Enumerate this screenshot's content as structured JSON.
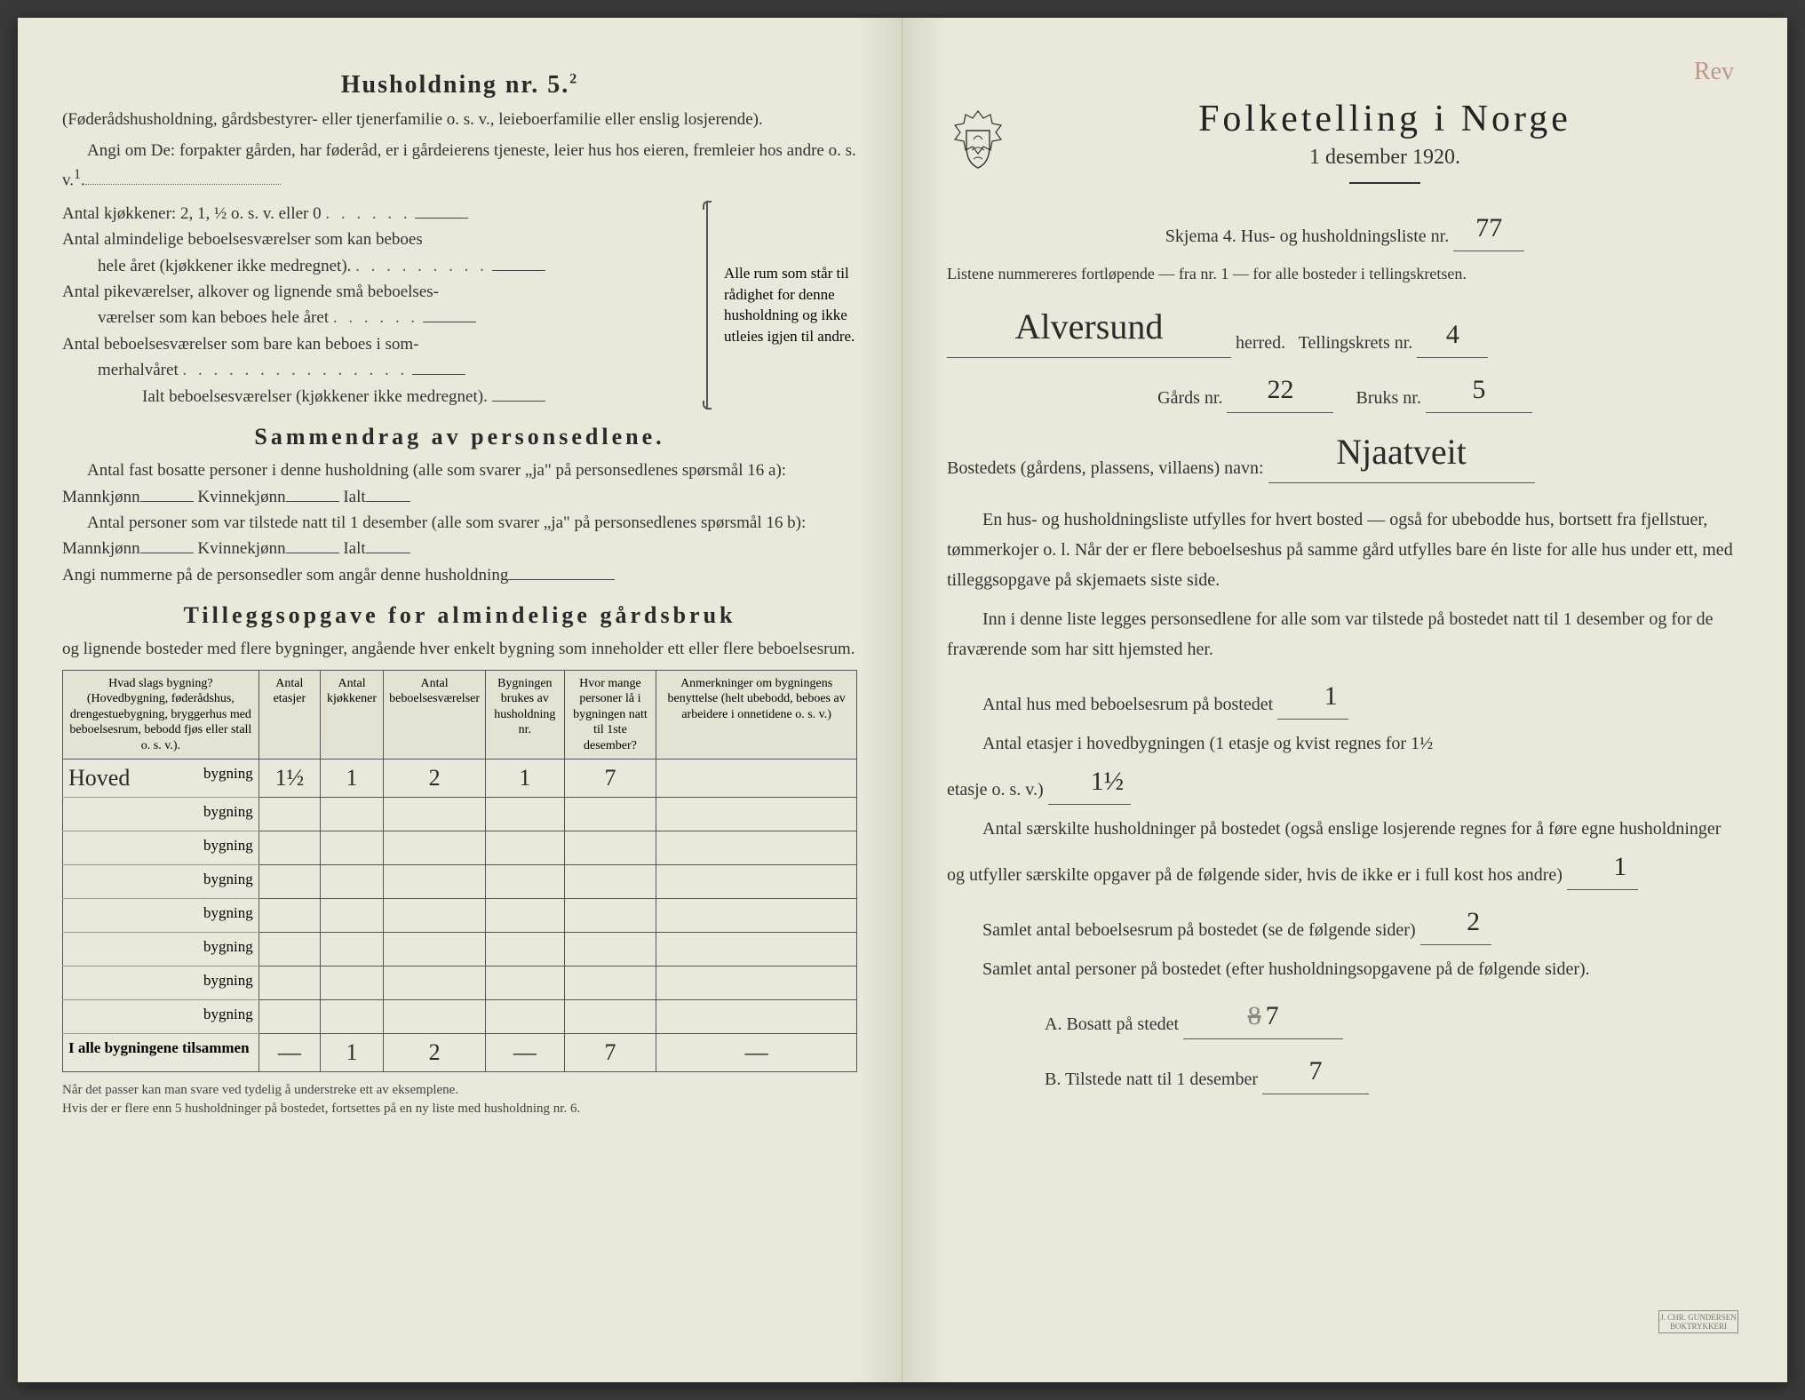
{
  "left": {
    "title": "Husholdning nr. 5.",
    "title_sup": "2",
    "intro1": "(Føderådshusholdning, gårdsbestyrer- eller tjenerfamilie o. s. v., leieboerfamilie eller enslig losjerende).",
    "intro2": "Angi om De: forpakter gården, har føderåd, er i gårdeierens tjeneste, leier hus hos eieren, fremleier hos andre o. s. v.",
    "line_kitchens": "Antal kjøkkener: 2, 1, ½ o. s. v. eller 0",
    "line_rooms1a": "Antal almindelige beboelsesværelser som kan beboes",
    "line_rooms1b": "hele året (kjøkkener ikke medregnet).",
    "line_rooms2a": "Antal pikeværelser, alkover og lignende små beboelses-",
    "line_rooms2b": "værelser som kan beboes hele året",
    "line_rooms3a": "Antal beboelsesværelser som bare kan beboes i som-",
    "line_rooms3b": "merhalvåret",
    "line_total": "Ialt beboelsesværelser (kjøkkener ikke medregnet).",
    "brace_text": "Alle rum som står til rådighet for denne husholdning og ikke utleies igjen til andre.",
    "summary_title": "Sammendrag av personsedlene.",
    "summary1": "Antal fast bosatte personer i denne husholdning (alle som svarer „ja\" på personsedlenes spørsmål 16 a): Mannkjønn",
    "summary1b": "Kvinnekjønn",
    "summary1c": "Ialt",
    "summary2": "Antal personer som var tilstede natt til 1 desember (alle som svarer „ja\" på personsedlenes spørsmål 16 b): Mannkjønn",
    "summary2b": "Kvinnekjønn",
    "summary2c": "Ialt",
    "summary3": "Angi nummerne på de personsedler som angår denne husholdning",
    "tillegg_title": "Tilleggsopgave for almindelige gårdsbruk",
    "tillegg_sub": "og lignende bosteder med flere bygninger, angående hver enkelt bygning som inneholder ett eller flere beboelsesrum.",
    "table": {
      "headers": [
        "Hvad slags bygning?\n(Hovedbygning, føderådshus, drengestuebygning, bryggerhus med beboelsesrum, bebodd fjøs eller stall o. s. v.).",
        "Antal etasjer",
        "Antal kjøkkener",
        "Antal beboelsesværelser",
        "Bygningen brukes av husholdning nr.",
        "Hvor mange personer lå i bygningen natt til 1ste desember?",
        "Anmerkninger om bygningens benyttelse (helt ubebodd, beboes av arbeidere i onnetidene o. s. v.)"
      ],
      "rows": [
        {
          "label_hw": "Hoved",
          "label": "bygning",
          "v": [
            "1½",
            "1",
            "2",
            "1",
            "7",
            ""
          ]
        },
        {
          "label_hw": "",
          "label": "bygning",
          "v": [
            "",
            "",
            "",
            "",
            "",
            ""
          ]
        },
        {
          "label_hw": "",
          "label": "bygning",
          "v": [
            "",
            "",
            "",
            "",
            "",
            ""
          ]
        },
        {
          "label_hw": "",
          "label": "bygning",
          "v": [
            "",
            "",
            "",
            "",
            "",
            ""
          ]
        },
        {
          "label_hw": "",
          "label": "bygning",
          "v": [
            "",
            "",
            "",
            "",
            "",
            ""
          ]
        },
        {
          "label_hw": "",
          "label": "bygning",
          "v": [
            "",
            "",
            "",
            "",
            "",
            ""
          ]
        },
        {
          "label_hw": "",
          "label": "bygning",
          "v": [
            "",
            "",
            "",
            "",
            "",
            ""
          ]
        },
        {
          "label_hw": "",
          "label": "bygning",
          "v": [
            "",
            "",
            "",
            "",
            "",
            ""
          ]
        }
      ],
      "total_label": "I alle bygningene tilsammen",
      "total": [
        "—",
        "1",
        "2",
        "—",
        "7",
        "—"
      ]
    },
    "footnote1": "Når det passer kan man svare ved tydelig å understreke ett av eksemplene.",
    "footnote2": "Hvis der er flere enn 5 husholdninger på bostedet, fortsettes på en ny liste med husholdning nr. 6."
  },
  "right": {
    "faded": "Rev",
    "main_title": "Folketelling i Norge",
    "subtitle": "1 desember 1920.",
    "skjema": "Skjema 4. Hus- og husholdningsliste nr.",
    "skjema_val": "77",
    "listene": "Listene nummereres fortløpende — fra nr. 1 — for alle bosteder i tellingskretsen.",
    "herred_val": "Alversund",
    "herred_label": "herred.",
    "krets_label": "Tellingskrets nr.",
    "krets_val": "4",
    "gards_label": "Gårds nr.",
    "gards_val": "22",
    "bruks_label": "Bruks nr.",
    "bruks_val": "5",
    "bosted_label": "Bostedets (gårdens, plassens, villaens) navn:",
    "bosted_val": "Njaatveit",
    "para1": "En hus- og husholdningsliste utfylles for hvert bosted — også for ubebodde hus, bortsett fra fjellstuer, tømmerkojer o. l. Når der er flere beboelseshus på samme gård utfylles bare én liste for alle hus under ett, med tilleggsopgave på skjemaets siste side.",
    "para2": "Inn i denne liste legges personsedlene for alle som var tilstede på bostedet natt til 1 desember og for de fraværende som har sitt hjemsted her.",
    "q1": "Antal hus med beboelsesrum på bostedet",
    "q1_val": "1",
    "q2a": "Antal etasjer i hovedbygningen (1 etasje og kvist regnes for 1½",
    "q2b": "etasje o. s. v.)",
    "q2_val": "1½",
    "q3": "Antal særskilte husholdninger på bostedet (også enslige losjerende regnes for å føre egne husholdninger og utfyller særskilte opgaver på de følgende sider, hvis de ikke er i full kost hos andre)",
    "q3_val": "1",
    "q4": "Samlet antal beboelsesrum på bostedet (se de følgende sider)",
    "q4_val": "2",
    "q5": "Samlet antal personer på bostedet (efter husholdningsopgavene på de følgende sider).",
    "qA": "A.  Bosatt på stedet",
    "qA_strike": "8",
    "qA_val": "7",
    "qB": "B.  Tilstede natt til 1 desember",
    "qB_val": "7",
    "printer": "J. CHR. GUNDERSEN BOKTRYKKERI"
  },
  "colors": {
    "paper": "#eae8da",
    "ink": "#2a2a2a",
    "rule": "#555555"
  }
}
